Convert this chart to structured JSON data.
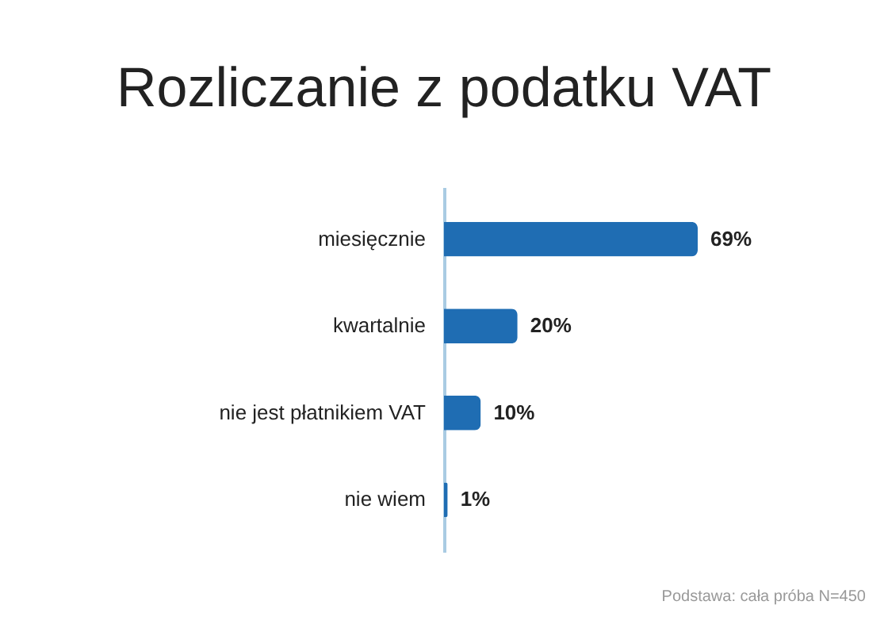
{
  "chart_data": {
    "type": "bar",
    "orientation": "horizontal",
    "title": "Rozliczanie z podatku VAT",
    "categories": [
      "miesięcznie",
      "kwartalnie",
      "nie jest płatnikiem VAT",
      "nie wiem"
    ],
    "values": [
      69,
      20,
      10,
      1
    ],
    "value_labels": [
      "69%",
      "20%",
      "10%",
      "1%"
    ],
    "color": "#1f6db3",
    "annotations": [
      "Podstawa: cała próba N=450"
    ]
  }
}
